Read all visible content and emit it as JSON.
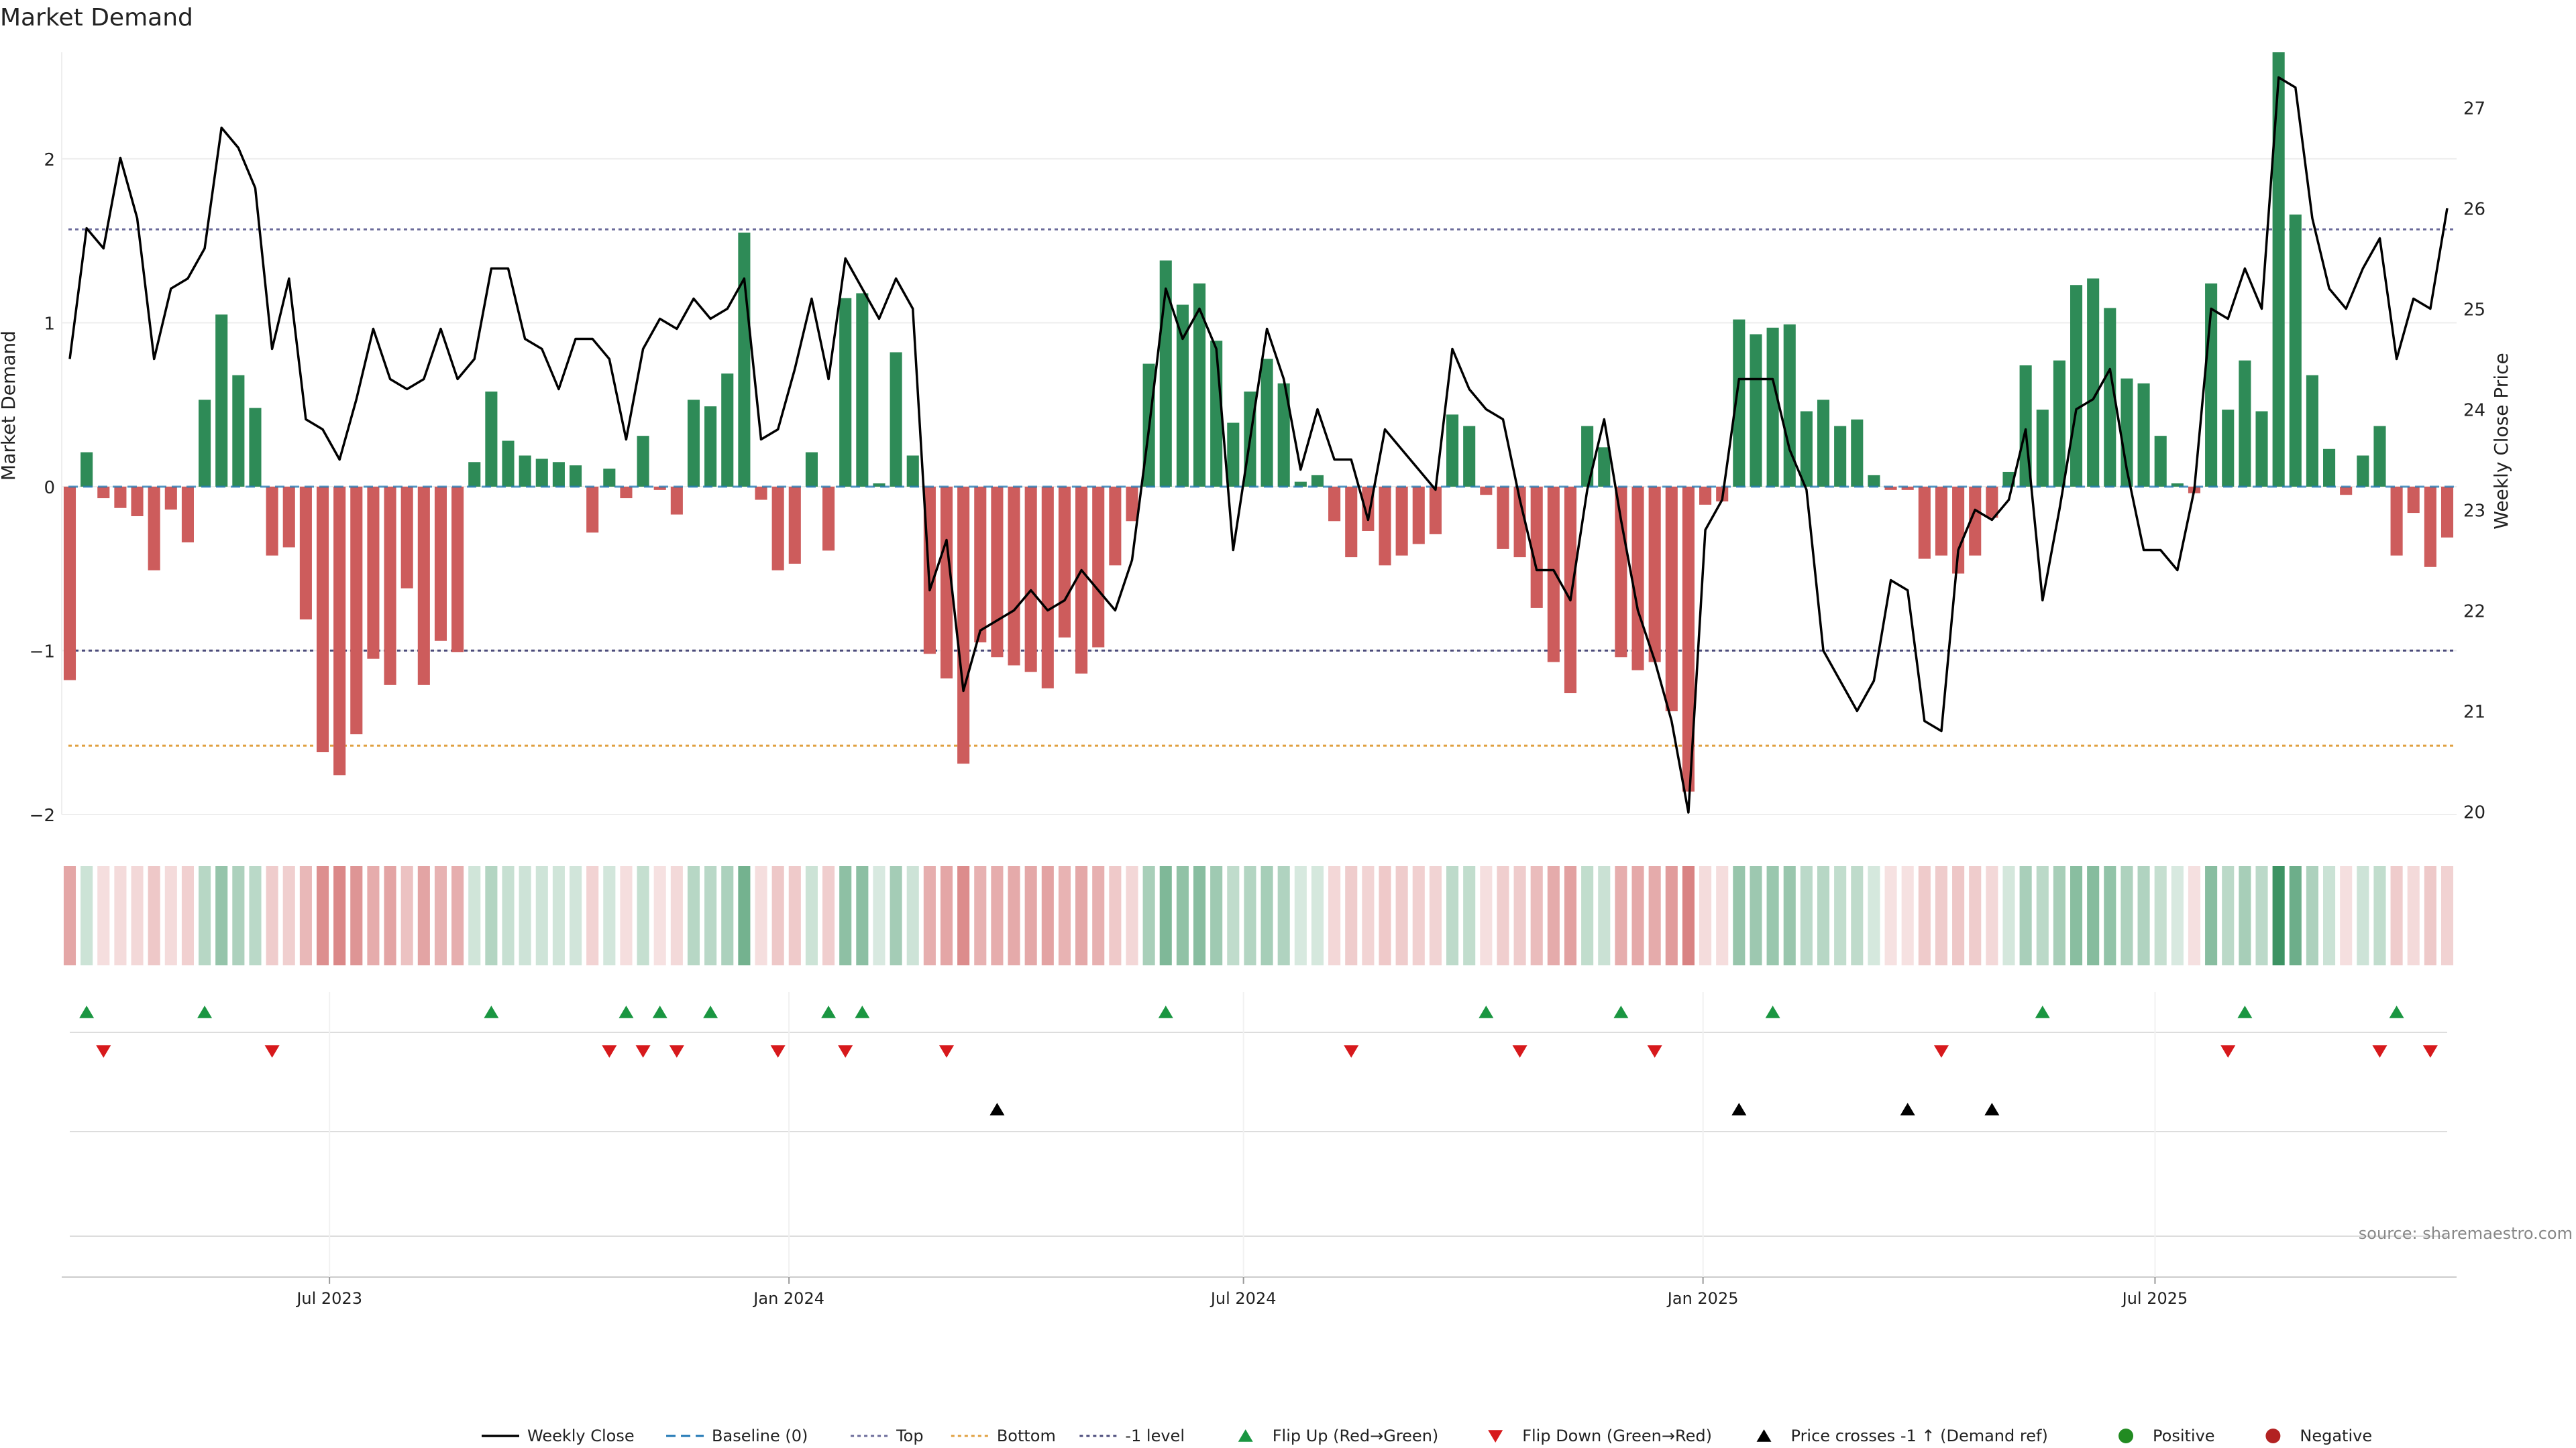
{
  "chart_data": {
    "type": "bar",
    "title": "Market Demand",
    "ylabel": "Market Demand",
    "y2label": "Weekly Close Price",
    "ylim": [
      -2.0,
      2.65
    ],
    "y2lim": [
      19.97,
      27.55
    ],
    "yticks": [
      -2,
      -1,
      0,
      1,
      2
    ],
    "y2ticks": [
      20,
      21,
      22,
      23,
      24,
      25,
      26,
      27
    ],
    "x_start": "2023-03-19",
    "x_end": "2025-10-26",
    "x_axis_end": "2025-11-01",
    "xtick_dates": [
      "2023-07-01",
      "2024-01-01",
      "2024-07-01",
      "2025-01-01",
      "2025-07-01"
    ],
    "xtick_labels": [
      "Jul 2023",
      "Jan 2024",
      "Jul 2024",
      "Jan 2025",
      "Jul 2025"
    ],
    "levels": {
      "top": 1.57,
      "bottom": -1.58,
      "minus_one": -1.0,
      "baseline": 0
    },
    "demand": [
      -1.18,
      0.21,
      -0.07,
      -0.13,
      -0.18,
      -0.51,
      -0.14,
      -0.34,
      0.53,
      1.05,
      0.68,
      0.48,
      -0.42,
      -0.37,
      -0.81,
      -1.62,
      -1.76,
      -1.51,
      -1.05,
      -1.21,
      -0.62,
      -1.21,
      -0.94,
      -1.01,
      0.15,
      0.58,
      0.28,
      0.19,
      0.17,
      0.15,
      0.13,
      -0.28,
      0.11,
      -0.07,
      0.31,
      -0.02,
      -0.17,
      0.53,
      0.49,
      0.69,
      1.55,
      -0.08,
      -0.51,
      -0.47,
      0.21,
      -0.39,
      1.15,
      1.18,
      0.02,
      0.82,
      0.19,
      -1.02,
      -1.17,
      -1.69,
      -0.95,
      -1.04,
      -1.09,
      -1.13,
      -1.23,
      -0.92,
      -1.14,
      -0.98,
      -0.48,
      -0.21,
      0.75,
      1.38,
      1.11,
      1.24,
      0.89,
      0.39,
      0.58,
      0.78,
      0.63,
      0.03,
      0.07,
      -0.21,
      -0.43,
      -0.27,
      -0.48,
      -0.42,
      -0.35,
      -0.29,
      0.44,
      0.37,
      -0.05,
      -0.38,
      -0.43,
      -0.74,
      -1.07,
      -1.26,
      0.37,
      0.24,
      -1.04,
      -1.12,
      -1.07,
      -1.37,
      -1.86,
      -0.11,
      -0.09,
      1.02,
      0.93,
      0.97,
      0.99,
      0.46,
      0.53,
      0.37,
      0.41,
      0.07,
      -0.02,
      -0.02,
      -0.44,
      -0.42,
      -0.53,
      -0.42,
      -0.19,
      0.09,
      0.74,
      0.47,
      0.77,
      1.23,
      1.27,
      1.09,
      0.66,
      0.63,
      0.31,
      0.02,
      -0.04,
      1.24,
      0.47,
      0.77,
      0.46,
      2.65,
      1.66,
      0.68,
      0.23,
      -0.05,
      0.19,
      0.37,
      -0.42,
      -0.16,
      -0.49,
      -0.31
    ],
    "close": [
      24.5,
      25.8,
      25.6,
      26.5,
      25.9,
      24.5,
      25.2,
      25.3,
      25.6,
      26.8,
      26.6,
      26.2,
      24.6,
      25.3,
      23.9,
      23.8,
      23.5,
      24.1,
      24.8,
      24.3,
      24.2,
      24.3,
      24.8,
      24.3,
      24.5,
      25.4,
      25.4,
      24.7,
      24.6,
      24.2,
      24.7,
      24.7,
      24.5,
      23.7,
      24.6,
      24.9,
      24.8,
      25.1,
      24.9,
      25.0,
      25.3,
      23.7,
      23.8,
      24.4,
      25.1,
      24.3,
      25.5,
      25.2,
      24.9,
      25.3,
      25.0,
      22.2,
      22.7,
      21.2,
      21.8,
      21.9,
      22.0,
      22.2,
      22.0,
      22.1,
      22.4,
      22.2,
      22.0,
      22.5,
      23.8,
      25.2,
      24.7,
      25.0,
      24.6,
      22.6,
      23.7,
      24.8,
      24.3,
      23.4,
      24.0,
      23.5,
      23.5,
      22.9,
      23.8,
      23.6,
      23.4,
      23.2,
      24.6,
      24.2,
      24.0,
      23.9,
      23.1,
      22.4,
      22.4,
      22.1,
      23.2,
      23.9,
      22.9,
      22.0,
      21.5,
      20.9,
      19.99,
      22.8,
      23.1,
      24.3,
      24.3,
      24.3,
      23.6,
      23.2,
      21.6,
      21.3,
      21.0,
      21.3,
      22.3,
      22.2,
      20.9,
      20.8,
      22.6,
      23.0,
      22.9,
      23.1,
      23.8,
      22.1,
      23.0,
      24.0,
      24.1,
      24.4,
      23.4,
      22.6,
      22.6,
      22.4,
      23.2,
      25.0,
      24.9,
      25.4,
      25.0,
      27.3,
      27.2,
      25.9,
      25.2,
      25.0,
      25.4,
      25.7,
      24.5,
      25.1,
      25.0,
      26.0
    ],
    "price_line_colour": "#000000",
    "positive_colour": "#2e8b57",
    "negative_colour": "#cd5c5c",
    "flip_up_index": [
      1,
      8,
      25,
      33,
      35,
      38,
      45,
      47,
      65,
      84,
      92,
      101,
      117,
      129,
      138
    ],
    "flip_down_index": [
      2,
      12,
      32,
      34,
      36,
      42,
      46,
      52,
      76,
      86,
      94,
      111,
      128,
      137,
      140
    ],
    "price_cross_index": [
      55,
      99,
      109,
      114
    ],
    "flip_up_colour": "#1a9641",
    "flip_down_colour": "#d7191c",
    "legend_position": "bottom-center",
    "legend": [
      {
        "label": "Weekly Close",
        "kind": "line",
        "colour": "#000000"
      },
      {
        "label": "Baseline (0)",
        "kind": "dash",
        "colour": "#1f77b4"
      },
      {
        "label": "Top",
        "kind": "dot",
        "colour": "#6b6b9a"
      },
      {
        "label": "Bottom",
        "kind": "dot",
        "colour": "#e0a040"
      },
      {
        "label": "-1 level",
        "kind": "dot",
        "colour": "#4a4a7a"
      },
      {
        "label": "Flip Up (Red→Green)",
        "kind": "tri-up",
        "colour": "#1a9641"
      },
      {
        "label": "Flip Down (Green→Red)",
        "kind": "tri-down",
        "colour": "#d7191c"
      },
      {
        "label": "Price crosses -1 ↑ (Demand ref)",
        "kind": "tri-up",
        "colour": "#000000"
      },
      {
        "label": "Positive",
        "kind": "circle",
        "colour": "#228b22"
      },
      {
        "label": "Negative",
        "kind": "circle",
        "colour": "#b22222"
      }
    ],
    "source": "source: sharemaestro.com"
  }
}
